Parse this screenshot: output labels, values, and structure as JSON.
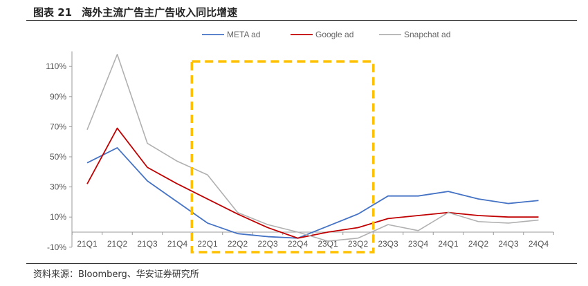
{
  "header": {
    "figure_no": "图表 21",
    "title": "海外主流广告主广告收入同比增速"
  },
  "footer": {
    "source": "资料来源：Bloomberg、华安证券研究所"
  },
  "chart_data": {
    "type": "line",
    "title": "海外主流广告主广告收入同比增速",
    "categories": [
      "21Q1",
      "21Q2",
      "21Q3",
      "21Q4",
      "22Q1",
      "22Q2",
      "22Q3",
      "22Q4",
      "23Q1",
      "23Q2",
      "23Q3",
      "23Q4",
      "24Q1",
      "24Q2",
      "24Q3",
      "24Q4"
    ],
    "series": [
      {
        "name": "META ad",
        "color": "#4472C4",
        "values": [
          46,
          56,
          34,
          20,
          6,
          -1,
          -3,
          -4,
          4,
          12,
          24,
          24,
          27,
          22,
          19,
          21
        ]
      },
      {
        "name": "Google ad",
        "color": "#C00000",
        "values": [
          32,
          69,
          43,
          32,
          22,
          12,
          3,
          -4,
          0,
          3,
          9,
          11,
          13,
          11,
          10,
          10
        ]
      },
      {
        "name": "Snapchat ad",
        "color": "#B0B0B0",
        "values": [
          68,
          118,
          59,
          47,
          38,
          13,
          5,
          0,
          -6,
          -4,
          5,
          1,
          13,
          7,
          6,
          8
        ]
      }
    ],
    "yticks": [
      -10,
      10,
      30,
      50,
      70,
      90,
      110
    ],
    "ytick_labels": [
      "-10%",
      "10%",
      "30%",
      "50%",
      "70%",
      "90%",
      "110%"
    ],
    "ylim": [
      -10,
      120
    ],
    "xlabel": "",
    "ylabel": "",
    "grid": false,
    "legend": "top",
    "highlight": {
      "from": "22Q1",
      "to": "23Q2",
      "style": "dashed box",
      "color": "#FFC000"
    }
  }
}
